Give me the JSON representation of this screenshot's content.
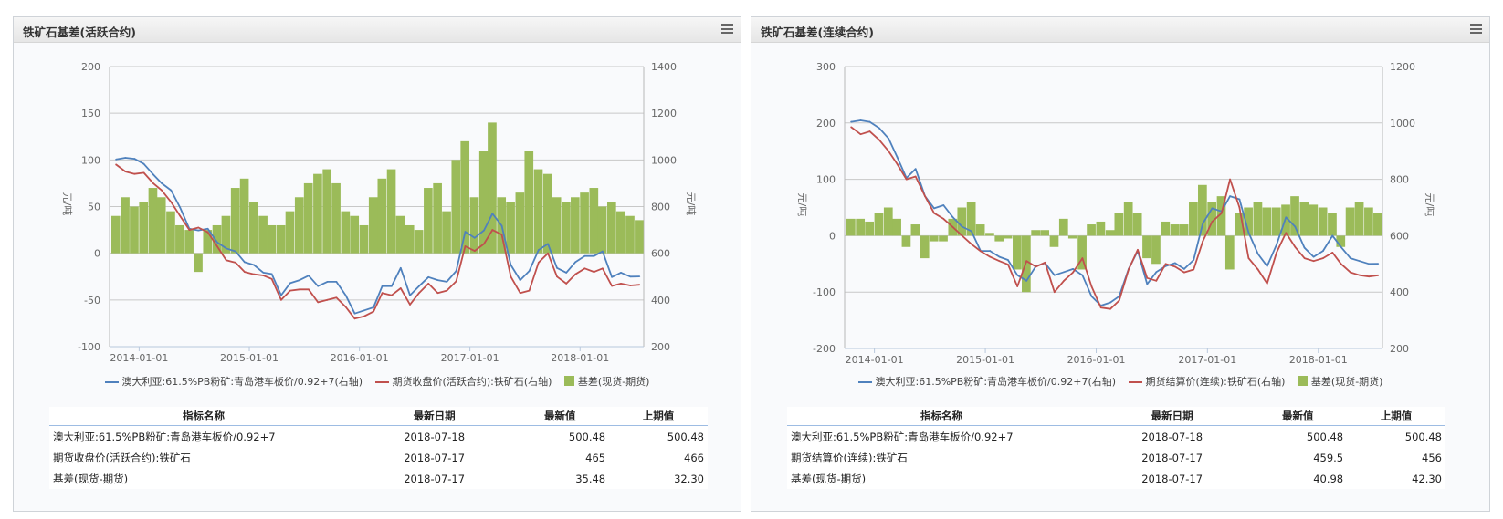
{
  "panels": [
    {
      "title": "铁矿石基差(活跃合约)",
      "menu_icon": "hamburger-menu-icon",
      "legend": [
        {
          "label": "澳大利亚:61.5%PB粉矿:青岛港车板价/0.92+7(右轴)",
          "color": "#4f81bd",
          "kind": "line"
        },
        {
          "label": "期货收盘价(活跃合约):铁矿石(右轴)",
          "color": "#c0504d",
          "kind": "line"
        },
        {
          "label": "基差(现货-期货)",
          "color": "#9bbb59",
          "kind": "bar"
        }
      ],
      "table": {
        "headers": [
          "指标名称",
          "最新日期",
          "最新值",
          "上期值"
        ],
        "rows": [
          [
            "澳大利亚:61.5%PB粉矿:青岛港车板价/0.92+7",
            "2018-07-18",
            "500.48",
            "500.48"
          ],
          [
            "期货收盘价(活跃合约):铁矿石",
            "2018-07-17",
            "465",
            "466"
          ],
          [
            "基差(现货-期货)",
            "2018-07-17",
            "35.48",
            "32.30"
          ]
        ]
      }
    },
    {
      "title": "铁矿石基差(连续合约)",
      "menu_icon": "hamburger-menu-icon",
      "legend": [
        {
          "label": "澳大利亚:61.5%PB粉矿:青岛港车板价/0.92+7(右轴)",
          "color": "#4f81bd",
          "kind": "line"
        },
        {
          "label": "期货结算价(连续):铁矿石(右轴)",
          "color": "#c0504d",
          "kind": "line"
        },
        {
          "label": "基差(现货-期货)",
          "color": "#9bbb59",
          "kind": "bar"
        }
      ],
      "table": {
        "headers": [
          "指标名称",
          "最新日期",
          "最新值",
          "上期值"
        ],
        "rows": [
          [
            "澳大利亚:61.5%PB粉矿:青岛港车板价/0.92+7",
            "2018-07-18",
            "500.48",
            "500.48"
          ],
          [
            "期货结算价(连续):铁矿石",
            "2018-07-17",
            "459.5",
            "456"
          ],
          [
            "基差(现货-期货)",
            "2018-07-17",
            "40.98",
            "42.30"
          ]
        ]
      }
    }
  ],
  "chart_data": [
    {
      "type": "bar+line",
      "title": "",
      "ylabel_left": "元/吨",
      "ylabel_right": "元/吨",
      "ylim_left": [
        -100,
        200
      ],
      "ylim_right": [
        200,
        1400
      ],
      "yticks_left": [
        "200",
        "150",
        "100",
        "50",
        "0",
        "-50",
        "-100"
      ],
      "yticks_right": [
        "1400",
        "1200",
        "1000",
        "800",
        "600",
        "400",
        "200"
      ],
      "xticks": [
        "2014-01-01",
        "2015-01-01",
        "2016-01-01",
        "2017-01-01",
        "2018-01-01"
      ],
      "xlim": [
        "2013-09-25",
        "2018-07-31"
      ],
      "grid": true,
      "legend_position": "bottom",
      "x": [
        "2013-10",
        "2013-11",
        "2013-12",
        "2014-01",
        "2014-02",
        "2014-03",
        "2014-04",
        "2014-05",
        "2014-06",
        "2014-07",
        "2014-08",
        "2014-09",
        "2014-10",
        "2014-11",
        "2014-12",
        "2015-01",
        "2015-02",
        "2015-03",
        "2015-04",
        "2015-05",
        "2015-06",
        "2015-07",
        "2015-08",
        "2015-09",
        "2015-10",
        "2015-11",
        "2015-12",
        "2016-01",
        "2016-02",
        "2016-03",
        "2016-04",
        "2016-05",
        "2016-06",
        "2016-07",
        "2016-08",
        "2016-09",
        "2016-10",
        "2016-11",
        "2016-12",
        "2017-01",
        "2017-02",
        "2017-03",
        "2017-04",
        "2017-05",
        "2017-06",
        "2017-07",
        "2017-08",
        "2017-09",
        "2017-10",
        "2017-11",
        "2017-12",
        "2018-01",
        "2018-02",
        "2018-03",
        "2018-04",
        "2018-05",
        "2018-06",
        "2018-07"
      ],
      "series": [
        {
          "name": "澳大利亚:61.5%PB粉矿:青岛港车板价/0.92+7(右轴)",
          "axis": "right",
          "kind": "line",
          "color": "#4f81bd",
          "values": [
            1002,
            1009,
            1005,
            983,
            938,
            900,
            870,
            796,
            705,
            698,
            705,
            647,
            621,
            608,
            562,
            550,
            517,
            511,
            420,
            472,
            485,
            504,
            459,
            478,
            478,
            420,
            342,
            355,
            368,
            459,
            459,
            537,
            420,
            459,
            498,
            485,
            478,
            524,
            692,
            666,
            698,
            770,
            718,
            550,
            485,
            524,
            614,
            640,
            537,
            517,
            562,
            588,
            588,
            608,
            498,
            517,
            500,
            500.48
          ]
        },
        {
          "name": "期货收盘价(活跃合约):铁矿石(右轴)",
          "axis": "right",
          "kind": "line",
          "color": "#c0504d",
          "values": [
            980,
            950,
            940,
            945,
            900,
            870,
            820,
            760,
            700,
            710,
            690,
            630,
            570,
            560,
            520,
            510,
            505,
            490,
            400,
            440,
            445,
            445,
            390,
            400,
            410,
            370,
            320,
            330,
            350,
            430,
            420,
            450,
            380,
            430,
            470,
            430,
            440,
            480,
            630,
            610,
            640,
            700,
            680,
            500,
            430,
            440,
            560,
            600,
            500,
            470,
            510,
            535,
            520,
            535,
            460,
            470,
            462,
            465
          ]
        },
        {
          "name": "基差(现货-期货)",
          "axis": "left",
          "kind": "bar",
          "color": "#9bbb59",
          "values": [
            40,
            60,
            50,
            55,
            70,
            60,
            45,
            30,
            25,
            -20,
            25,
            30,
            40,
            70,
            80,
            55,
            40,
            30,
            30,
            45,
            60,
            75,
            85,
            90,
            75,
            45,
            40,
            30,
            60,
            80,
            90,
            40,
            30,
            25,
            70,
            75,
            45,
            100,
            120,
            60,
            110,
            140,
            60,
            55,
            65,
            110,
            90,
            85,
            60,
            55,
            60,
            65,
            70,
            50,
            55,
            45,
            40,
            35.48
          ]
        }
      ]
    },
    {
      "type": "bar+line",
      "title": "",
      "ylabel_left": "元/吨",
      "ylabel_right": "元/吨",
      "ylim_left": [
        -200,
        300
      ],
      "ylim_right": [
        200,
        1200
      ],
      "yticks_left": [
        "300",
        "200",
        "100",
        "0",
        "-100",
        "-200"
      ],
      "yticks_right": [
        "1200",
        "1000",
        "800",
        "600",
        "400",
        "200"
      ],
      "xticks": [
        "2014-01-01",
        "2015-01-01",
        "2016-01-01",
        "2017-01-01",
        "2018-01-01"
      ],
      "xlim": [
        "2013-09-25",
        "2018-07-31"
      ],
      "grid": true,
      "legend_position": "bottom",
      "x": [
        "2013-10",
        "2013-11",
        "2013-12",
        "2014-01",
        "2014-02",
        "2014-03",
        "2014-04",
        "2014-05",
        "2014-06",
        "2014-07",
        "2014-08",
        "2014-09",
        "2014-10",
        "2014-11",
        "2014-12",
        "2015-01",
        "2015-02",
        "2015-03",
        "2015-04",
        "2015-05",
        "2015-06",
        "2015-07",
        "2015-08",
        "2015-09",
        "2015-10",
        "2015-11",
        "2015-12",
        "2016-01",
        "2016-02",
        "2016-03",
        "2016-04",
        "2016-05",
        "2016-06",
        "2016-07",
        "2016-08",
        "2016-09",
        "2016-10",
        "2016-11",
        "2016-12",
        "2017-01",
        "2017-02",
        "2017-03",
        "2017-04",
        "2017-05",
        "2017-06",
        "2017-07",
        "2017-08",
        "2017-09",
        "2017-10",
        "2017-11",
        "2017-12",
        "2018-01",
        "2018-02",
        "2018-03",
        "2018-04",
        "2018-05",
        "2018-06",
        "2018-07"
      ],
      "series": [
        {
          "name": "澳大利亚:61.5%PB粉矿:青岛港车板价/0.92+7(右轴)",
          "axis": "right",
          "kind": "line",
          "color": "#4f81bd",
          "values": [
            1004,
            1009,
            1004,
            982,
            945,
            880,
            805,
            837,
            740,
            697,
            708,
            665,
            632,
            616,
            546,
            546,
            525,
            514,
            460,
            440,
            492,
            503,
            460,
            471,
            482,
            460,
            385,
            352,
            363,
            385,
            482,
            546,
            428,
            471,
            492,
            503,
            482,
            514,
            643,
            697,
            686,
            740,
            729,
            611,
            535,
            492,
            568,
            665,
            632,
            557,
            525,
            546,
            600,
            560,
            520,
            510,
            500,
            500.48
          ]
        },
        {
          "name": "期货结算价(连续):铁矿石(右轴)",
          "axis": "right",
          "kind": "line",
          "color": "#c0504d",
          "values": [
            985,
            960,
            970,
            940,
            900,
            855,
            800,
            810,
            740,
            680,
            660,
            630,
            600,
            570,
            545,
            525,
            510,
            498,
            420,
            510,
            490,
            505,
            400,
            440,
            470,
            520,
            420,
            345,
            340,
            370,
            480,
            550,
            450,
            440,
            500,
            490,
            470,
            480,
            580,
            650,
            680,
            800,
            700,
            520,
            480,
            430,
            540,
            610,
            560,
            520,
            510,
            520,
            540,
            500,
            470,
            460,
            455,
            459.5
          ]
        },
        {
          "name": "基差(现货-期货)",
          "axis": "left",
          "kind": "bar",
          "color": "#9bbb59",
          "values": [
            30,
            30,
            25,
            40,
            50,
            30,
            -20,
            20,
            -40,
            -10,
            -10,
            30,
            50,
            60,
            20,
            5,
            -10,
            -5,
            -60,
            -100,
            10,
            10,
            -20,
            30,
            -5,
            -60,
            20,
            25,
            10,
            40,
            60,
            40,
            -40,
            -50,
            25,
            20,
            20,
            60,
            90,
            60,
            70,
            -60,
            40,
            50,
            60,
            50,
            50,
            55,
            70,
            60,
            55,
            50,
            40,
            -20,
            50,
            60,
            50,
            40.98
          ]
        }
      ]
    }
  ]
}
